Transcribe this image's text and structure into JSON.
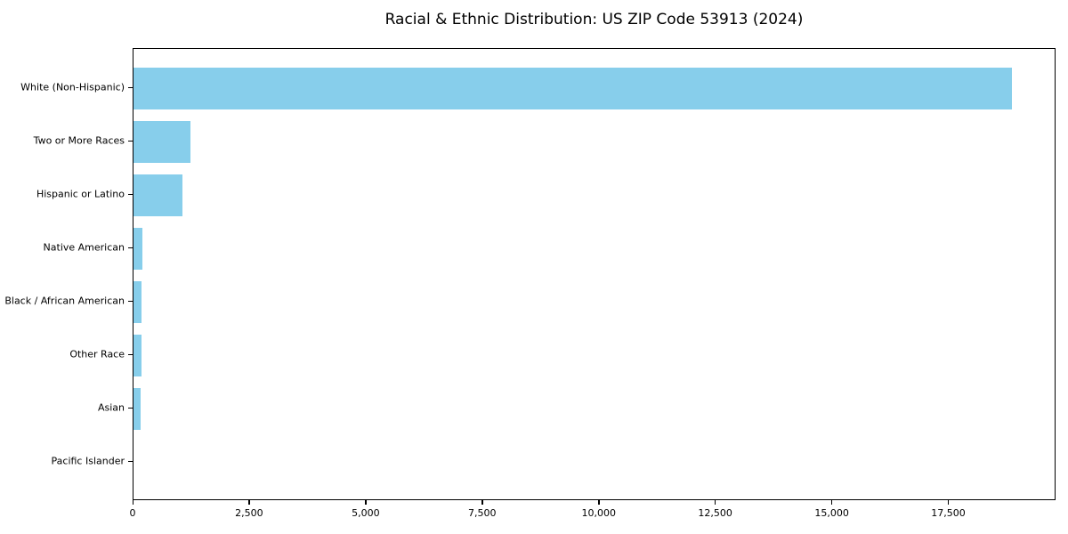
{
  "title": "Racial & Ethnic Distribution: US ZIP Code 53913 (2024)",
  "chart_data": {
    "type": "bar",
    "orientation": "horizontal",
    "title": "Racial & Ethnic Distribution: US ZIP Code 53913 (2024)",
    "xlabel": "",
    "ylabel": "",
    "categories": [
      "White (Non-Hispanic)",
      "Two or More Races",
      "Hispanic or Latino",
      "Native American",
      "Black / African American",
      "Other Race",
      "Asian",
      "Pacific Islander"
    ],
    "values": [
      18850,
      1220,
      1045,
      185,
      175,
      165,
      145,
      0
    ],
    "xlim": [
      0,
      19800
    ],
    "x_ticks": [
      0,
      2500,
      5000,
      7500,
      10000,
      12500,
      15000,
      17500
    ],
    "x_tick_labels": [
      "0",
      "2,500",
      "5,000",
      "7,500",
      "10,000",
      "12,500",
      "15,000",
      "17,500"
    ],
    "bar_color": "#87CEEB",
    "axis_color": "#000000",
    "background_color": "#ffffff",
    "grid": false,
    "legend": null
  }
}
